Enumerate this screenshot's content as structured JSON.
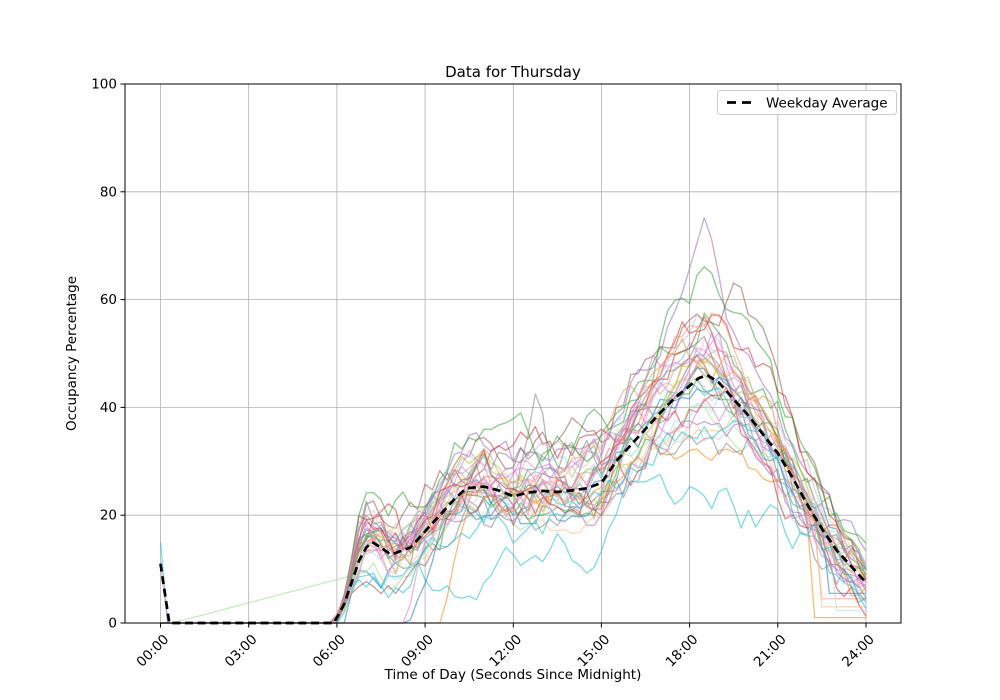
{
  "figure": {
    "background": "#ffffff",
    "text_color": "#000000",
    "spine_color": "#000000"
  },
  "chart_data": {
    "type": "line",
    "title": "Data for Thursday",
    "xlabel": "Time of Day (Seconds Since Midnight)",
    "ylabel": "Occupancy Percentage",
    "ylim": [
      0,
      100
    ],
    "x_axis_hours": [
      0,
      24
    ],
    "grid": true,
    "grid_color": "#b0b0b0",
    "x_ticks": [
      {
        "hour": 0,
        "label": "00:00"
      },
      {
        "hour": 3,
        "label": "03:00"
      },
      {
        "hour": 6,
        "label": "06:00"
      },
      {
        "hour": 9,
        "label": "09:00"
      },
      {
        "hour": 12,
        "label": "12:00"
      },
      {
        "hour": 15,
        "label": "15:00"
      },
      {
        "hour": 18,
        "label": "18:00"
      },
      {
        "hour": 21,
        "label": "21:00"
      },
      {
        "hour": 24,
        "label": "24:00"
      }
    ],
    "y_ticks": [
      0,
      20,
      40,
      60,
      80,
      100
    ],
    "legend": {
      "position": "upper right",
      "entries": [
        {
          "label": "Weekday Average",
          "color": "#000000",
          "line_style": "dashed"
        }
      ]
    },
    "average_series": {
      "name": "Weekday Average",
      "style": {
        "color": "#000000",
        "dash": [
          8,
          4.6
        ],
        "width": 2.7
      },
      "points_hour_value": [
        [
          0,
          11
        ],
        [
          0.15,
          5.5
        ],
        [
          0.3,
          0
        ],
        [
          1,
          0
        ],
        [
          2,
          0
        ],
        [
          3,
          0
        ],
        [
          4,
          0
        ],
        [
          5,
          0
        ],
        [
          5.9,
          0
        ],
        [
          6.25,
          3.5
        ],
        [
          6.5,
          7.5
        ],
        [
          6.75,
          11.5
        ],
        [
          7,
          14
        ],
        [
          7.2,
          15
        ],
        [
          7.5,
          14
        ],
        [
          7.8,
          12.8
        ],
        [
          8,
          13
        ],
        [
          8.5,
          14
        ],
        [
          9,
          17
        ],
        [
          9.5,
          20
        ],
        [
          10,
          23
        ],
        [
          10.4,
          25
        ],
        [
          11,
          25.3
        ],
        [
          11.5,
          24.6
        ],
        [
          12,
          23.5
        ],
        [
          12.5,
          24.2
        ],
        [
          13,
          24.5
        ],
        [
          13.5,
          24.3
        ],
        [
          14,
          24.6
        ],
        [
          14.5,
          25
        ],
        [
          15,
          26
        ],
        [
          15.5,
          30
        ],
        [
          16,
          33
        ],
        [
          16.5,
          36
        ],
        [
          17,
          39
        ],
        [
          17.5,
          41.8
        ],
        [
          18,
          44
        ],
        [
          18.3,
          45.4
        ],
        [
          18.6,
          46
        ],
        [
          19,
          44.6
        ],
        [
          19.5,
          41.5
        ],
        [
          20,
          38.5
        ],
        [
          20.5,
          35
        ],
        [
          21,
          31.5
        ],
        [
          21.5,
          27
        ],
        [
          22,
          22
        ],
        [
          22.5,
          17.5
        ],
        [
          23,
          13.5
        ],
        [
          23.5,
          10.5
        ],
        [
          24,
          7.5
        ]
      ]
    },
    "envelope": {
      "hours": [
        0,
        1,
        2,
        3,
        4,
        5,
        6,
        7,
        8,
        9,
        10,
        11,
        12,
        13,
        14,
        15,
        16,
        17,
        18,
        19,
        20,
        21,
        22,
        23,
        24
      ],
      "max": [
        15,
        0,
        0,
        0,
        0,
        0,
        9,
        26,
        24,
        28,
        38,
        36,
        45,
        35,
        35,
        40,
        49,
        58,
        67,
        62,
        55,
        45,
        35,
        25,
        10
      ],
      "min": [
        0,
        0,
        0,
        0,
        0,
        0,
        0,
        4,
        7,
        10,
        2,
        15,
        17,
        17,
        17,
        17,
        16,
        15,
        17,
        19,
        17,
        14,
        4,
        2,
        1
      ]
    },
    "individual_series_count": 38,
    "individual_series_style": {
      "opacity": 0.55,
      "width": 1.3
    },
    "individual_series": [
      {
        "color": "#9467bd",
        "seed": 101,
        "scale": 1.3,
        "wobble": 2.6,
        "start": 5.9,
        "bump": {
          "c": 18.5,
          "w": 0.45,
          "a": 10
        }
      },
      {
        "color": "#7f7f7f",
        "seed": 102,
        "scale": 1.0,
        "wobble": 3.0,
        "start": 6.1,
        "bump": {
          "c": 12.75,
          "w": 0.5,
          "a": 19
        }
      },
      {
        "color": "#d62728",
        "seed": 103,
        "scale": 1.15,
        "wobble": 3.2,
        "start": 5.85,
        "bump": {
          "c": 7.6,
          "w": 0.8,
          "a": 9
        }
      },
      {
        "color": "#1f77b4",
        "seed": 104,
        "scale": 0.95,
        "wobble": 2.8,
        "start": 6.3,
        "tail": {
          "from": 22.7,
          "level": 5.5
        }
      },
      {
        "color": "#ff9896",
        "seed": 105,
        "scale": 1.1,
        "wobble": 2.6,
        "start": 5.9,
        "tail": {
          "from": 22.4,
          "level": 4.5
        }
      },
      {
        "color": "#2ca02c",
        "seed": 106,
        "scale": 1.2,
        "wobble": 3.0,
        "start": 6.0
      },
      {
        "color": "#8c564b",
        "seed": 107,
        "scale": 1.25,
        "wobble": 2.8,
        "start": 5.95,
        "bump": {
          "c": 19.9,
          "w": 0.9,
          "a": 8
        }
      },
      {
        "color": "#bcbd22",
        "seed": 108,
        "scale": 1.05,
        "wobble": 2.6,
        "start": 6.1
      },
      {
        "color": "#da70d6",
        "seed": 109,
        "scale": 1.1,
        "wobble": 3.0,
        "start": 6.0
      },
      {
        "color": "#ff7f0e",
        "seed": 110,
        "scale": 0.74,
        "wobble": 2.4,
        "start": 6.0,
        "late": 9.55,
        "tail": {
          "from": 22.2,
          "level": 1.0
        }
      },
      {
        "color": "#17becf",
        "seed": 111,
        "scale": 0.62,
        "wobble": 3.2,
        "start": 6.2
      },
      {
        "color": "#98df8a",
        "seed": 112,
        "scale": 0.85,
        "wobble": 2.2,
        "start": 6.0,
        "linear": [
          0.4,
          7.0,
          9.5
        ]
      },
      {
        "color": "#1f77b4",
        "seed": 113,
        "scale": 1.05,
        "wobble": 2.8,
        "start": 6.15,
        "late": 8.45
      },
      {
        "color": "#ff7f0e",
        "seed": 114,
        "scale": 1.12,
        "wobble": 3.0,
        "start": 5.9
      },
      {
        "color": "#2ca02c",
        "seed": 115,
        "scale": 0.92,
        "wobble": 2.6,
        "start": 6.25
      },
      {
        "color": "#d62728",
        "seed": 116,
        "scale": 1.0,
        "wobble": 3.4,
        "start": 6.0
      },
      {
        "color": "#9467bd",
        "seed": 117,
        "scale": 0.88,
        "wobble": 2.8,
        "start": 6.05
      },
      {
        "color": "#8c564b",
        "seed": 118,
        "scale": 1.08,
        "wobble": 2.7,
        "start": 6.0
      },
      {
        "color": "#7f7f7f",
        "seed": 119,
        "scale": 0.9,
        "wobble": 3.1,
        "start": 6.2
      },
      {
        "color": "#bcbd22",
        "seed": 120,
        "scale": 1.15,
        "wobble": 2.5,
        "start": 5.95
      },
      {
        "color": "#17becf",
        "seed": 121,
        "scale": 0.98,
        "wobble": 2.9,
        "start": 6.1
      },
      {
        "color": "#aec7e8",
        "seed": 122,
        "scale": 1.02,
        "wobble": 2.7,
        "start": 6.0
      },
      {
        "color": "#ffbb78",
        "seed": 123,
        "scale": 0.95,
        "wobble": 2.6,
        "start": 6.1,
        "tail": {
          "from": 22.5,
          "level": 3.0
        }
      },
      {
        "color": "#c5b0d5",
        "seed": 124,
        "scale": 1.18,
        "wobble": 2.8,
        "start": 6.0
      },
      {
        "color": "#c49c94",
        "seed": 125,
        "scale": 1.05,
        "wobble": 2.9,
        "start": 6.05
      },
      {
        "color": "#f7b6d2",
        "seed": 126,
        "scale": 1.1,
        "wobble": 3.0,
        "start": 5.9
      },
      {
        "color": "#c7c7c7",
        "seed": 127,
        "scale": 0.85,
        "wobble": 3.2,
        "start": 6.2
      },
      {
        "color": "#dbdb8d",
        "seed": 128,
        "scale": 0.95,
        "wobble": 2.4,
        "start": 6.0
      },
      {
        "color": "#9edae5",
        "seed": 129,
        "scale": 0.9,
        "wobble": 2.8,
        "start": 6.1,
        "tail": {
          "from": 22.9,
          "level": 2.3
        }
      },
      {
        "color": "#d62728",
        "seed": 130,
        "scale": 1.25,
        "wobble": 3.0,
        "start": 5.9
      },
      {
        "color": "#e377c2",
        "seed": 131,
        "scale": 0.95,
        "wobble": 2.7,
        "start": 6.0,
        "late": 8.3
      },
      {
        "color": "#2ca02c",
        "seed": 132,
        "scale": 1.32,
        "wobble": 3.1,
        "start": 6.0
      },
      {
        "color": "#da70d6",
        "seed": 133,
        "scale": 1.22,
        "wobble": 3.3,
        "start": 5.95
      },
      {
        "color": "#8da0cb",
        "seed": 134,
        "scale": 1.0,
        "wobble": 2.6,
        "start": 6.1
      },
      {
        "color": "#fc8d62",
        "seed": 135,
        "scale": 1.15,
        "wobble": 2.9,
        "start": 6.0
      },
      {
        "color": "#e377c2",
        "seed": 136,
        "scale": 1.05,
        "wobble": 2.8,
        "start": 5.9,
        "spike0": 11
      },
      {
        "color": "#17becf",
        "seed": 137,
        "scale": 0.9,
        "wobble": 2.6,
        "start": 6.05,
        "spike0": 15
      },
      {
        "color": "#7f7f7f",
        "seed": 138,
        "scale": 1.12,
        "wobble": 2.8,
        "start": 6.15
      }
    ]
  }
}
